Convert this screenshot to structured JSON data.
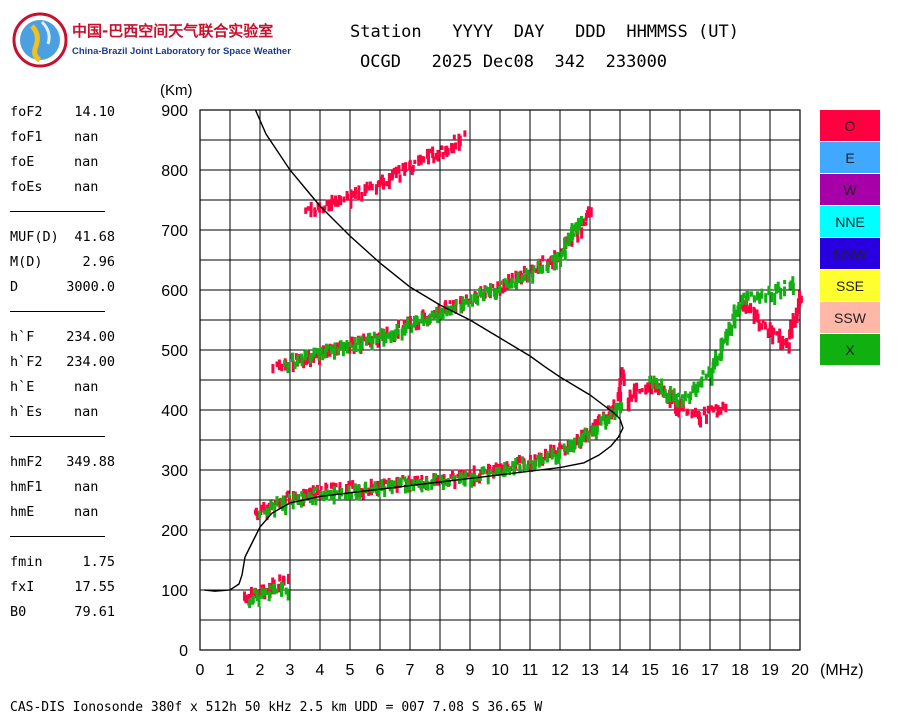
{
  "logo": {
    "cn": "中国-巴西空间天气联合实验室",
    "en": "China-Brazil Joint Laboratory for Space Weather"
  },
  "header": {
    "line1": "Station   YYYY  DAY   DDD  HHMMSS (UT)",
    "line2": "OCGD   2025 Dec08  342  233000"
  },
  "params": [
    {
      "label": "foF2",
      "value": "14.10"
    },
    {
      "label": "foF1",
      "value": "nan"
    },
    {
      "label": "foE",
      "value": "nan"
    },
    {
      "label": "foEs",
      "value": "nan"
    },
    {
      "label": "MUF(D)",
      "value": "41.68"
    },
    {
      "label": "M(D)",
      "value": "2.96"
    },
    {
      "label": "D",
      "value": "3000.0"
    },
    {
      "label": "h`F",
      "value": "234.00"
    },
    {
      "label": "h`F2",
      "value": "234.00"
    },
    {
      "label": "h`E",
      "value": "nan"
    },
    {
      "label": "h`Es",
      "value": "nan"
    },
    {
      "label": "hmF2",
      "value": "349.88"
    },
    {
      "label": "hmF1",
      "value": "nan"
    },
    {
      "label": "hmE",
      "value": "nan"
    },
    {
      "label": "fmin",
      "value": "1.75"
    },
    {
      "label": "fxI",
      "value": "17.55"
    },
    {
      "label": "B0",
      "value": "79.61"
    }
  ],
  "legend": [
    {
      "label": "O",
      "color": "#ff0040"
    },
    {
      "label": "E",
      "color": "#40a8ff"
    },
    {
      "label": "W",
      "color": "#a800a8"
    },
    {
      "label": "NNE",
      "color": "#00ffff"
    },
    {
      "label": "NNW",
      "color": "#2800e0"
    },
    {
      "label": "SSE",
      "color": "#ffff30"
    },
    {
      "label": "SSW",
      "color": "#ffb8a8"
    },
    {
      "label": "X",
      "color": "#10b010"
    }
  ],
  "footer": "CAS-DIS Ionosonde 380f x 512h 50 kHz 2.5 km UDD = 007 7.08 S 36.65 W",
  "chart_data": {
    "type": "scatter",
    "ylabel": "(Km)",
    "xlabel": "(MHz)",
    "xlim": [
      0,
      20
    ],
    "ylim": [
      0,
      900
    ],
    "xticks": [
      0,
      1,
      2,
      3,
      4,
      5,
      6,
      7,
      8,
      9,
      10,
      11,
      12,
      13,
      14,
      15,
      16,
      17,
      18,
      19,
      20
    ],
    "yticks": [
      0,
      100,
      200,
      300,
      400,
      500,
      600,
      700,
      800,
      900
    ],
    "grid": true,
    "series": [
      {
        "name": "O",
        "color": "#ff0040",
        "traces": [
          {
            "x": [
              1.8,
              2.5,
              3.0,
              4.0,
              5.0,
              6.0,
              7.0,
              8.0,
              9.0,
              10.0,
              11.0,
              12.0,
              12.5,
              13.0,
              13.5,
              13.8,
              14.0,
              14.1
            ],
            "y": [
              235,
              248,
              262,
              270,
              275,
              280,
              285,
              290,
              298,
              308,
              322,
              340,
              355,
              372,
              395,
              420,
              445,
              470
            ]
          },
          {
            "x": [
              2.4,
              3.0,
              4.0,
              5.0,
              6.0,
              7.0,
              8.0,
              9.0,
              10.0,
              11.0,
              12.0,
              12.5,
              13.0
            ],
            "y": [
              475,
              485,
              500,
              515,
              530,
              550,
              572,
              592,
              612,
              640,
              668,
              700,
              740
            ]
          },
          {
            "x": [
              3.5,
              4.0,
              5.0,
              6.0,
              7.0,
              8.0,
              8.8
            ],
            "y": [
              735,
              745,
              762,
              785,
              812,
              838,
              860
            ]
          },
          {
            "x": [
              1.4,
              1.8,
              2.2,
              2.6,
              2.9
            ],
            "y": [
              95,
              100,
              108,
              118,
              125
            ]
          },
          {
            "x": [
              14.2,
              14.5,
              15.0,
              15.5,
              16.0,
              16.5,
              17.0,
              17.5
            ],
            "y": [
              420,
              440,
              450,
              430,
              410,
              395,
              400,
              410
            ]
          },
          {
            "x": [
              18.0,
              18.5,
              19.0,
              19.5,
              20.0
            ],
            "y": [
              590,
              560,
              540,
              510,
              600
            ]
          }
        ]
      },
      {
        "name": "X",
        "color": "#10b010",
        "traces": [
          {
            "x": [
              2.0,
              3.0,
              4.0,
              5.0,
              6.0,
              7.0,
              8.0,
              9.0,
              10.0,
              11.0,
              12.0,
              13.0,
              13.5,
              14.0
            ],
            "y": [
              240,
              255,
              265,
              272,
              278,
              284,
              288,
              296,
              306,
              318,
              335,
              368,
              390,
              420
            ]
          },
          {
            "x": [
              2.8,
              4.0,
              6.0,
              8.0,
              10.0,
              11.0,
              12.0,
              12.7
            ],
            "y": [
              485,
              500,
              530,
              568,
              610,
              635,
              665,
              730
            ]
          },
          {
            "x": [
              1.6,
              2.4,
              3.0
            ],
            "y": [
              92,
              105,
              110
            ]
          },
          {
            "x": [
              15.0,
              16.0,
              17.0,
              18.0,
              19.0,
              19.8
            ],
            "y": [
              455,
              420,
              470,
              590,
              600,
              620
            ]
          }
        ]
      }
    ],
    "profile": {
      "x": [
        0.15,
        0.5,
        1.0,
        1.3,
        1.4,
        1.45,
        1.5,
        1.6,
        1.8,
        2.0,
        2.4,
        3.0,
        4.0,
        5.0,
        6.0,
        7.0,
        8.0,
        9.0,
        10.0,
        11.0,
        12.0,
        12.8,
        13.3,
        13.7,
        13.95,
        14.1,
        14.0,
        13.8,
        13.4,
        13.0,
        12.5,
        12.0,
        11.5,
        11.0,
        10.0,
        9.0,
        8.0,
        7.0,
        6.0,
        5.0,
        4.0,
        3.5,
        3.0,
        2.6,
        2.2,
        1.85
      ],
      "y": [
        100,
        98,
        100,
        110,
        125,
        140,
        155,
        165,
        185,
        205,
        228,
        245,
        256,
        262,
        268,
        274,
        280,
        286,
        292,
        298,
        304,
        312,
        325,
        340,
        355,
        370,
        385,
        395,
        410,
        425,
        440,
        455,
        472,
        490,
        520,
        550,
        575,
        605,
        645,
        690,
        740,
        770,
        800,
        830,
        860,
        900
      ]
    }
  }
}
